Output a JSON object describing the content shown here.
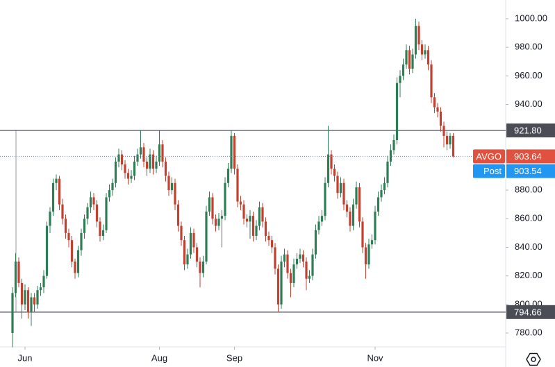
{
  "chart_data": {
    "type": "candlestick",
    "up_color": "#2f7d55",
    "down_color": "#c2402f",
    "ohlc": [
      [
        780,
        812,
        770,
        808
      ],
      [
        808,
        836,
        805,
        830
      ],
      [
        830,
        833,
        812,
        815
      ],
      [
        815,
        818,
        790,
        800
      ],
      [
        800,
        814,
        796,
        810
      ],
      [
        810,
        812,
        790,
        795
      ],
      [
        795,
        808,
        785,
        805
      ],
      [
        805,
        808,
        795,
        800
      ],
      [
        800,
        813,
        797,
        810
      ],
      [
        810,
        815,
        806,
        812
      ],
      [
        812,
        824,
        808,
        820
      ],
      [
        820,
        858,
        818,
        855
      ],
      [
        855,
        868,
        850,
        865
      ],
      [
        865,
        888,
        862,
        885
      ],
      [
        885,
        891,
        880,
        888
      ],
      [
        888,
        890,
        866,
        870
      ],
      [
        870,
        874,
        856,
        860
      ],
      [
        860,
        863,
        846,
        850
      ],
      [
        850,
        853,
        840,
        845
      ],
      [
        845,
        848,
        826,
        830
      ],
      [
        830,
        832,
        818,
        822
      ],
      [
        822,
        841,
        819,
        838
      ],
      [
        838,
        853,
        834,
        850
      ],
      [
        850,
        863,
        846,
        860
      ],
      [
        860,
        871,
        856,
        868
      ],
      [
        868,
        879,
        864,
        875
      ],
      [
        875,
        878,
        866,
        870
      ],
      [
        870,
        873,
        854,
        858
      ],
      [
        858,
        861,
        844,
        848
      ],
      [
        848,
        856,
        845,
        852
      ],
      [
        852,
        878,
        850,
        875
      ],
      [
        875,
        884,
        872,
        880
      ],
      [
        880,
        888,
        876,
        885
      ],
      [
        885,
        903,
        882,
        900
      ],
      [
        900,
        909,
        896,
        905
      ],
      [
        905,
        908,
        894,
        898
      ],
      [
        898,
        901,
        888,
        892
      ],
      [
        892,
        895,
        884,
        888
      ],
      [
        888,
        894,
        885,
        890
      ],
      [
        890,
        904,
        887,
        900
      ],
      [
        900,
        909,
        897,
        905
      ],
      [
        905,
        922,
        902,
        910
      ],
      [
        910,
        913,
        896,
        900
      ],
      [
        900,
        903,
        890,
        895
      ],
      [
        895,
        909,
        892,
        905
      ],
      [
        905,
        908,
        891,
        895
      ],
      [
        895,
        904,
        892,
        900
      ],
      [
        900,
        922,
        897,
        912
      ],
      [
        912,
        915,
        896,
        900
      ],
      [
        900,
        903,
        886,
        890
      ],
      [
        890,
        893,
        876,
        880
      ],
      [
        880,
        889,
        877,
        885
      ],
      [
        885,
        888,
        866,
        870
      ],
      [
        870,
        873,
        851,
        855
      ],
      [
        855,
        858,
        841,
        845
      ],
      [
        845,
        848,
        824,
        828
      ],
      [
        828,
        839,
        825,
        835
      ],
      [
        835,
        854,
        832,
        850
      ],
      [
        850,
        853,
        836,
        840
      ],
      [
        840,
        843,
        826,
        830
      ],
      [
        830,
        833,
        812,
        822
      ],
      [
        822,
        834,
        819,
        830
      ],
      [
        830,
        869,
        828,
        865
      ],
      [
        865,
        879,
        862,
        875
      ],
      [
        875,
        878,
        856,
        860
      ],
      [
        860,
        863,
        851,
        855
      ],
      [
        855,
        864,
        852,
        860
      ],
      [
        860,
        866,
        840,
        862
      ],
      [
        862,
        889,
        859,
        885
      ],
      [
        885,
        899,
        882,
        895
      ],
      [
        895,
        922,
        892,
        918
      ],
      [
        918,
        920,
        891,
        895
      ],
      [
        895,
        898,
        868,
        872
      ],
      [
        872,
        876,
        866,
        870
      ],
      [
        870,
        873,
        856,
        860
      ],
      [
        860,
        863,
        854,
        858
      ],
      [
        858,
        866,
        846,
        862
      ],
      [
        862,
        865,
        844,
        848
      ],
      [
        848,
        859,
        845,
        855
      ],
      [
        855,
        872,
        852,
        868
      ],
      [
        868,
        871,
        854,
        858
      ],
      [
        858,
        861,
        844,
        848
      ],
      [
        848,
        851,
        841,
        845
      ],
      [
        845,
        848,
        836,
        840
      ],
      [
        840,
        843,
        821,
        825
      ],
      [
        825,
        828,
        795,
        800
      ],
      [
        800,
        834,
        797,
        830
      ],
      [
        830,
        839,
        826,
        835
      ],
      [
        835,
        838,
        818,
        822
      ],
      [
        822,
        825,
        805,
        815
      ],
      [
        815,
        832,
        812,
        828
      ],
      [
        828,
        836,
        825,
        832
      ],
      [
        832,
        839,
        829,
        835
      ],
      [
        835,
        838,
        826,
        830
      ],
      [
        830,
        833,
        810,
        818
      ],
      [
        818,
        824,
        815,
        820
      ],
      [
        820,
        839,
        817,
        835
      ],
      [
        835,
        856,
        832,
        852
      ],
      [
        852,
        862,
        849,
        858
      ],
      [
        858,
        866,
        855,
        862
      ],
      [
        862,
        889,
        859,
        885
      ],
      [
        885,
        925,
        882,
        905
      ],
      [
        905,
        908,
        891,
        895
      ],
      [
        895,
        898,
        886,
        890
      ],
      [
        890,
        893,
        874,
        878
      ],
      [
        878,
        889,
        875,
        885
      ],
      [
        885,
        888,
        866,
        870
      ],
      [
        870,
        873,
        861,
        865
      ],
      [
        865,
        868,
        851,
        855
      ],
      [
        855,
        874,
        852,
        870
      ],
      [
        870,
        886,
        867,
        882
      ],
      [
        882,
        885,
        854,
        858
      ],
      [
        858,
        861,
        836,
        840
      ],
      [
        840,
        843,
        818,
        828
      ],
      [
        828,
        846,
        825,
        842
      ],
      [
        842,
        849,
        839,
        845
      ],
      [
        845,
        869,
        842,
        865
      ],
      [
        865,
        879,
        862,
        875
      ],
      [
        875,
        884,
        872,
        880
      ],
      [
        880,
        889,
        877,
        885
      ],
      [
        885,
        904,
        882,
        900
      ],
      [
        900,
        912,
        897,
        908
      ],
      [
        908,
        919,
        905,
        915
      ],
      [
        915,
        959,
        912,
        955
      ],
      [
        955,
        964,
        945,
        960
      ],
      [
        960,
        972,
        957,
        968
      ],
      [
        968,
        982,
        965,
        978
      ],
      [
        978,
        981,
        961,
        965
      ],
      [
        965,
        979,
        962,
        975
      ],
      [
        975,
        1000,
        972,
        995
      ],
      [
        995,
        998,
        978,
        982
      ],
      [
        982,
        985,
        971,
        975
      ],
      [
        975,
        982,
        972,
        978
      ],
      [
        978,
        981,
        964,
        968
      ],
      [
        968,
        971,
        941,
        945
      ],
      [
        945,
        948,
        934,
        938
      ],
      [
        938,
        941,
        931,
        935
      ],
      [
        935,
        938,
        921,
        925
      ],
      [
        925,
        928,
        910,
        918
      ],
      [
        918,
        921,
        908,
        912
      ],
      [
        912,
        920,
        909,
        918
      ],
      [
        918,
        920,
        903,
        903.64
      ]
    ],
    "ylim": [
      780,
      1000
    ],
    "yticks": [
      {
        "value": 780,
        "label": "780.00"
      },
      {
        "value": 800,
        "label": "800.00"
      },
      {
        "value": 820,
        "label": "820.00"
      },
      {
        "value": 840,
        "label": "840.00"
      },
      {
        "value": 860,
        "label": "860.00"
      },
      {
        "value": 880,
        "label": "880.00"
      },
      {
        "value": 940,
        "label": "940.00"
      },
      {
        "value": 960,
        "label": "960.00"
      },
      {
        "value": 980,
        "label": "980.00"
      },
      {
        "value": 1000,
        "label": "1000.00"
      }
    ],
    "xticks": [
      {
        "value": 4,
        "label": "Jun"
      },
      {
        "value": 47,
        "label": "Aug"
      },
      {
        "value": 71,
        "label": "Sep"
      },
      {
        "value": 116,
        "label": "Nov"
      }
    ],
    "levels": [
      {
        "value": 921.8,
        "label": "921.80"
      },
      {
        "value": 794.66,
        "label": "794.66"
      }
    ],
    "last": {
      "name": "AVGO",
      "value": 903.64,
      "label": "903.64",
      "color": "#e0523f"
    },
    "post": {
      "name": "Post",
      "value": 903.54,
      "label": "903.54",
      "color": "#2196f3"
    }
  }
}
